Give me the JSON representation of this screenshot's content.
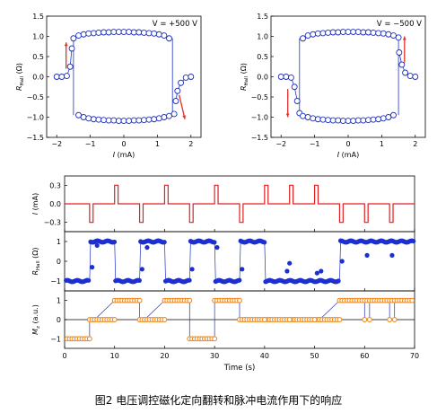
{
  "caption": "图2 电压调控磁化定向翻转和脉冲电流作用下的响应",
  "colors": {
    "axis": "#000000",
    "hyst_line": "#1f33c8",
    "hyst_marker": "#1f2fbf",
    "arrow": "#e0302a",
    "pulse": "#e02020",
    "rhall_bottom": "#1c2fd0",
    "mz_marker": "#f08a1e",
    "mz_line": "#2233bb"
  },
  "chart_data": [
    {
      "id": "hysteresis-left",
      "type": "scatter",
      "annotation": "V = +500 V",
      "xlabel": "I (mA)",
      "ylabel": "R_Hall (Ω)",
      "xlim": [
        -2.3,
        2.3
      ],
      "ylim": [
        -1.5,
        1.5
      ],
      "xticks": [
        -2,
        -1,
        0,
        1,
        2
      ],
      "yticks": [
        -1.5,
        -1.0,
        -0.5,
        0.0,
        0.5,
        1.0,
        1.5
      ],
      "upper_branch": {
        "x": [
          -1.5,
          -1.35,
          -1.2,
          -1.05,
          -0.9,
          -0.75,
          -0.6,
          -0.45,
          -0.3,
          -0.15,
          0.0,
          0.15,
          0.3,
          0.45,
          0.6,
          0.75,
          0.9,
          1.05,
          1.2,
          1.35
        ],
        "y": [
          0.95,
          1.02,
          1.05,
          1.07,
          1.08,
          1.09,
          1.1,
          1.1,
          1.11,
          1.11,
          1.11,
          1.11,
          1.1,
          1.1,
          1.09,
          1.08,
          1.07,
          1.05,
          1.02,
          0.95
        ]
      },
      "lower_branch": {
        "x": [
          -1.35,
          -1.2,
          -1.05,
          -0.9,
          -0.75,
          -0.6,
          -0.45,
          -0.3,
          -0.15,
          0.0,
          0.15,
          0.3,
          0.45,
          0.6,
          0.75,
          0.9,
          1.05,
          1.2,
          1.35,
          1.5
        ],
        "y": [
          -0.95,
          -1.0,
          -1.03,
          -1.05,
          -1.06,
          -1.07,
          -1.08,
          -1.08,
          -1.09,
          -1.09,
          -1.09,
          -1.08,
          -1.08,
          -1.07,
          -1.06,
          -1.05,
          -1.03,
          -1.0,
          -0.97,
          -0.92
        ]
      },
      "left_tail": {
        "x": [
          -2.0,
          -1.85,
          -1.7,
          -1.6,
          -1.55
        ],
        "y": [
          0.0,
          0.0,
          0.02,
          0.25,
          0.7
        ]
      },
      "right_tail": {
        "x": [
          1.55,
          1.6,
          1.7,
          1.85,
          2.0
        ],
        "y": [
          -0.6,
          -0.35,
          -0.15,
          -0.02,
          0.0
        ]
      },
      "switch_x": [
        -1.5,
        1.45
      ],
      "arrows": [
        "up-left",
        "down-right"
      ]
    },
    {
      "id": "hysteresis-right",
      "type": "scatter",
      "annotation": "V = −500 V",
      "xlabel": "I (mA)",
      "ylabel": "R_Hall (Ω)",
      "xlim": [
        -2.3,
        2.3
      ],
      "ylim": [
        -1.5,
        1.5
      ],
      "xticks": [
        -2,
        -1,
        0,
        1,
        2
      ],
      "yticks": [
        -1.5,
        -1.0,
        -0.5,
        0.0,
        0.5,
        1.0,
        1.5
      ],
      "upper_branch": {
        "x": [
          -1.35,
          -1.2,
          -1.05,
          -0.9,
          -0.75,
          -0.6,
          -0.45,
          -0.3,
          -0.15,
          0.0,
          0.15,
          0.3,
          0.45,
          0.6,
          0.75,
          0.9,
          1.05,
          1.2,
          1.35,
          1.5
        ],
        "y": [
          0.95,
          1.02,
          1.05,
          1.07,
          1.08,
          1.09,
          1.1,
          1.1,
          1.11,
          1.11,
          1.11,
          1.11,
          1.1,
          1.1,
          1.09,
          1.08,
          1.07,
          1.05,
          1.02,
          0.97
        ]
      },
      "lower_branch": {
        "x": [
          -1.45,
          -1.35,
          -1.2,
          -1.05,
          -0.9,
          -0.75,
          -0.6,
          -0.45,
          -0.3,
          -0.15,
          0.0,
          0.15,
          0.3,
          0.45,
          0.6,
          0.75,
          0.9,
          1.05,
          1.2,
          1.35
        ],
        "y": [
          -0.9,
          -0.97,
          -1.0,
          -1.03,
          -1.05,
          -1.06,
          -1.07,
          -1.08,
          -1.08,
          -1.09,
          -1.09,
          -1.09,
          -1.08,
          -1.08,
          -1.07,
          -1.06,
          -1.05,
          -1.03,
          -1.0,
          -0.95
        ]
      },
      "left_tail": {
        "x": [
          -2.0,
          -1.85,
          -1.7,
          -1.6,
          -1.52
        ],
        "y": [
          0.0,
          0.0,
          -0.02,
          -0.25,
          -0.6
        ]
      },
      "right_tail": {
        "x": [
          1.52,
          1.6,
          1.7,
          1.85,
          2.0
        ],
        "y": [
          0.6,
          0.3,
          0.1,
          0.02,
          0.0
        ]
      },
      "switch_x": [
        -1.45,
        1.5
      ],
      "arrows": [
        "down-left",
        "up-right"
      ]
    },
    {
      "id": "pulse-current",
      "type": "line",
      "ylabel": "I (mA)",
      "ylim": [
        -0.45,
        0.45
      ],
      "xlim": [
        0,
        70
      ],
      "yticks": [
        -0.3,
        0.0,
        0.3
      ],
      "pulses": [
        {
          "t": 5,
          "v": -0.3
        },
        {
          "t": 10,
          "v": 0.3
        },
        {
          "t": 15,
          "v": -0.3
        },
        {
          "t": 20,
          "v": 0.3
        },
        {
          "t": 25,
          "v": -0.3
        },
        {
          "t": 30,
          "v": 0.3
        },
        {
          "t": 35,
          "v": -0.3
        },
        {
          "t": 40,
          "v": 0.3
        },
        {
          "t": 45,
          "v": 0.3
        },
        {
          "t": 50,
          "v": 0.3
        },
        {
          "t": 55,
          "v": -0.3
        },
        {
          "t": 60,
          "v": -0.3
        },
        {
          "t": 65,
          "v": -0.3
        }
      ],
      "pulse_width": 0.7
    },
    {
      "id": "rhall-time",
      "type": "scatter",
      "ylabel": "R_Hall (Ω)",
      "ylim": [
        -1.5,
        1.5
      ],
      "xlim": [
        0,
        70
      ],
      "yticks": [
        -1,
        0,
        1
      ],
      "segments": [
        {
          "t0": 0.3,
          "t1": 5.0,
          "v": -1.0
        },
        {
          "t0": 5.2,
          "t1": 10.0,
          "v": 1.0
        },
        {
          "t0": 10.2,
          "t1": 15.0,
          "v": -1.0
        },
        {
          "t0": 15.2,
          "t1": 20.0,
          "v": 1.0
        },
        {
          "t0": 20.2,
          "t1": 25.0,
          "v": -1.0
        },
        {
          "t0": 25.2,
          "t1": 30.0,
          "v": 1.0
        },
        {
          "t0": 30.2,
          "t1": 35.0,
          "v": -1.0
        },
        {
          "t0": 35.2,
          "t1": 40.0,
          "v": 1.0
        },
        {
          "t0": 40.2,
          "t1": 55.0,
          "v": -1.0
        },
        {
          "t0": 55.2,
          "t1": 69.8,
          "v": 1.0
        }
      ],
      "spikes": [
        {
          "t": 5.5,
          "v": -0.3
        },
        {
          "t": 6.5,
          "v": 0.8
        },
        {
          "t": 15.5,
          "v": -0.4
        },
        {
          "t": 16.5,
          "v": 0.7
        },
        {
          "t": 25.5,
          "v": -0.4
        },
        {
          "t": 35.5,
          "v": -0.4
        },
        {
          "t": 44.5,
          "v": -0.5
        },
        {
          "t": 45.0,
          "v": -0.1
        },
        {
          "t": 50.5,
          "v": -0.6
        },
        {
          "t": 51.3,
          "v": -0.5
        },
        {
          "t": 55.5,
          "v": 0.0
        },
        {
          "t": 60.5,
          "v": 0.3
        },
        {
          "t": 65.5,
          "v": 0.3
        },
        {
          "t": 30.5,
          "v": 0.7
        }
      ]
    },
    {
      "id": "mz-time",
      "type": "scatter",
      "ylabel": "M_z (a.u.)",
      "xlabel": "Time (s)",
      "ylim": [
        -1.5,
        1.5
      ],
      "xlim": [
        0,
        70
      ],
      "xticks": [
        0,
        10,
        20,
        30,
        40,
        50,
        60,
        70
      ],
      "yticks": [
        -1,
        0,
        1
      ],
      "levels": [
        {
          "t0": 0.5,
          "t1": 5.0,
          "v": -1
        },
        {
          "t0": 5.0,
          "t1": 6.0,
          "v": 0
        },
        {
          "t0": 10.0,
          "t1": 15.0,
          "v": 1
        },
        {
          "t0": 15.0,
          "t1": 16.0,
          "v": 0
        },
        {
          "t0": 20.0,
          "t1": 25.0,
          "v": 1
        },
        {
          "t0": 25.0,
          "t1": 30.0,
          "v": -1
        },
        {
          "t0": 30.0,
          "t1": 35.0,
          "v": 1
        },
        {
          "t0": 35.0,
          "t1": 36.0,
          "v": 0
        },
        {
          "t0": 40.0,
          "t1": 41.0,
          "v": 0
        },
        {
          "t0": 45.0,
          "t1": 46.0,
          "v": 0
        },
        {
          "t0": 50.0,
          "t1": 51.0,
          "v": 0
        },
        {
          "t0": 55.0,
          "t1": 69.8,
          "v": 1
        }
      ],
      "zero_runs": [
        {
          "t0": 6.0,
          "t1": 10.0
        },
        {
          "t0": 16.0,
          "t1": 20.0
        },
        {
          "t0": 36.0,
          "t1": 40.0
        },
        {
          "t0": 41.0,
          "t1": 45.0
        },
        {
          "t0": 46.0,
          "t1": 50.0
        },
        {
          "t0": 51.0,
          "t1": 55.0
        }
      ],
      "dips": [
        {
          "t0": 60.0,
          "t1": 61.0,
          "v": 0
        },
        {
          "t0": 65.0,
          "t1": 66.0,
          "v": 0
        }
      ]
    }
  ]
}
